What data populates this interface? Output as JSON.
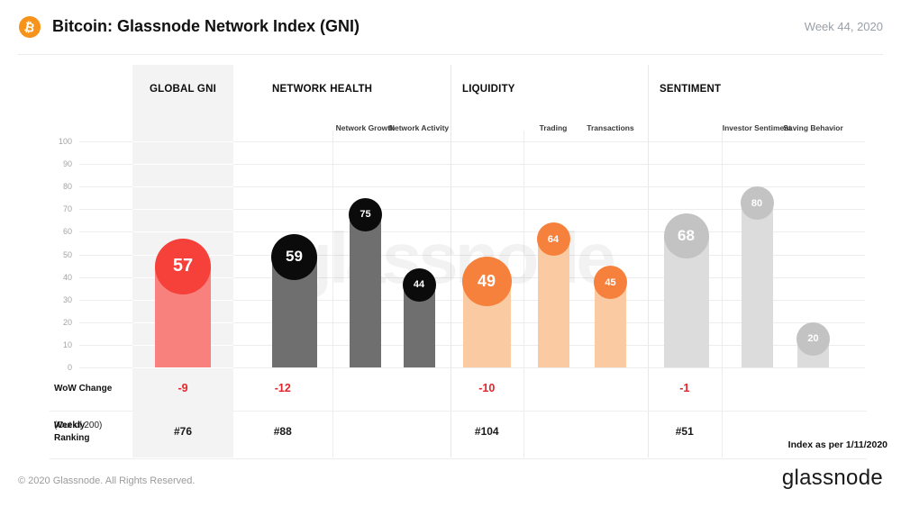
{
  "header": {
    "title": "Bitcoin: Glassnode Network Index (GNI)",
    "week_label": "Week 44, 2020",
    "bitcoin_icon": "₿",
    "bitcoin_color": "#f7931a"
  },
  "watermark": "glassnode",
  "chart_data": {
    "type": "bar",
    "title": "Bitcoin: Glassnode Network Index (GNI)",
    "period": "Week 44, 2020",
    "ylim": [
      0,
      100
    ],
    "y_ticks": [
      100,
      90,
      80,
      70,
      60,
      50,
      40,
      30,
      20,
      10,
      0
    ],
    "grid": true,
    "groups": [
      {
        "name": "GLOBAL GNI",
        "highlighted": true,
        "circle_color": "#f6403a",
        "bar_color": "#f8817d",
        "main": {
          "label": "Global GNI",
          "value": 57
        },
        "subs": [],
        "wow_change": "-9",
        "weekly_ranking": "#76"
      },
      {
        "name": "NETWORK HEALTH",
        "highlighted": false,
        "circle_color": "#0b0b0b",
        "bar_color": "#6f6f6f",
        "main": {
          "label": "Network Health",
          "value": 59
        },
        "subs": [
          {
            "label": "Network Growth",
            "value": 75
          },
          {
            "label": "Network Activity",
            "value": 44
          }
        ],
        "wow_change": "-12",
        "weekly_ranking": "#88"
      },
      {
        "name": "LIQUIDITY",
        "highlighted": false,
        "circle_color": "#f5813c",
        "bar_color": "#facba3",
        "main": {
          "label": "Liquidity",
          "value": 49
        },
        "subs": [
          {
            "label": "Trading",
            "value": 64
          },
          {
            "label": "Transactions",
            "value": 45
          }
        ],
        "wow_change": "-10",
        "weekly_ranking": "#104"
      },
      {
        "name": "SENTIMENT",
        "highlighted": false,
        "circle_color": "#c3c3c3",
        "bar_color": "#dcdcdc",
        "main": {
          "label": "Sentiment",
          "value": 68
        },
        "subs": [
          {
            "label": "Investor Sentiment",
            "value": 80
          },
          {
            "label": "Saving Behavior",
            "value": 20
          }
        ],
        "wow_change": "-1",
        "weekly_ranking": "#51"
      }
    ],
    "row_labels": {
      "wow": "WoW Change",
      "ranking": "Weekly Ranking",
      "ranking_note": "(Out of 200)"
    },
    "wow_color": "#e5252b",
    "footnote": "Index as per 1/11/2020"
  },
  "footer": {
    "copyright": "© 2020 Glassnode. All Rights Reserved.",
    "logo_text": "glassnode"
  }
}
